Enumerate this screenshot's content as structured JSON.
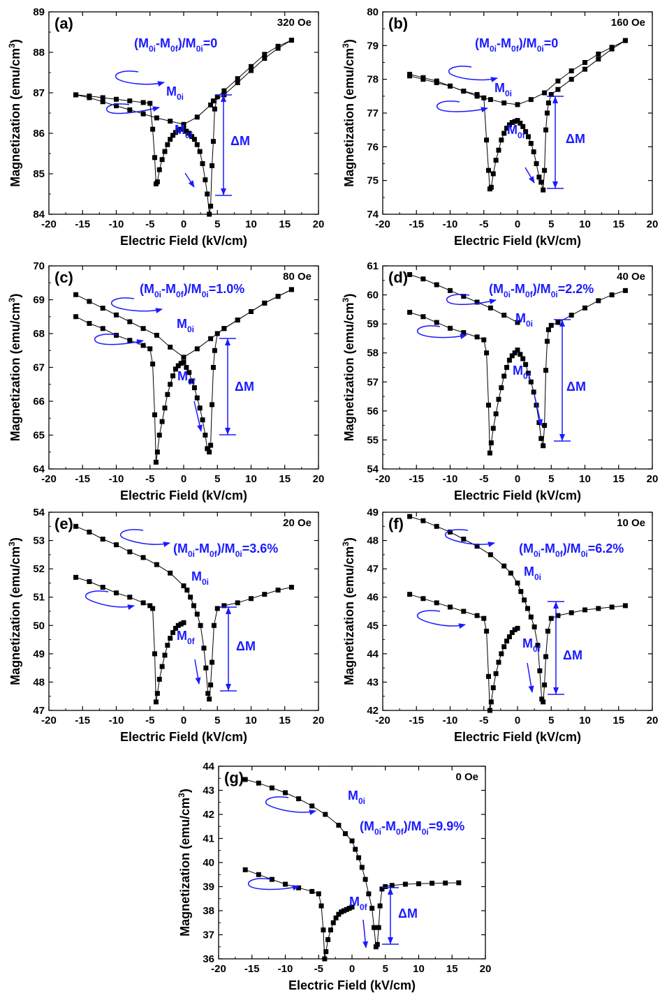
{
  "chart_data": [
    {
      "type": "scatter",
      "panel": "(a)",
      "field": "320 Oe",
      "ratio": "=0",
      "xlabel": "Electric Field (kV/cm)",
      "ylabel": "Magnetization (emu/cm3)",
      "xlim": [
        -20,
        20
      ],
      "ylim": [
        84,
        89
      ],
      "xticks": [
        -20,
        -15,
        -10,
        -5,
        0,
        5,
        10,
        15,
        20
      ],
      "yticks": [
        84,
        85,
        86,
        87,
        88,
        89
      ],
      "series": [
        {
          "x": [
            -16,
            -14,
            -12,
            -10,
            -8,
            -6,
            -5,
            -4.6,
            -4.3,
            -4.1,
            -3.9,
            -3.6,
            -3.2,
            -2.8,
            -2.4,
            -2,
            -1.6,
            -1.2,
            -0.8,
            -0.4,
            0,
            0.4,
            0.8,
            1.2,
            1.6,
            2,
            2.4,
            2.8,
            3.2,
            3.5,
            3.8,
            4,
            4.2,
            4.4,
            4.6,
            5,
            6,
            8,
            10,
            12,
            14,
            16
          ],
          "y": [
            86.95,
            86.92,
            86.88,
            86.84,
            86.8,
            86.76,
            86.74,
            86.1,
            85.4,
            84.75,
            84.8,
            85.1,
            85.35,
            85.55,
            85.72,
            85.85,
            85.95,
            86.02,
            86.08,
            86.1,
            86.12,
            86.05,
            86,
            85.92,
            85.85,
            85.72,
            85.55,
            85.25,
            84.85,
            84.5,
            84,
            84.2,
            85.2,
            85.8,
            86.6,
            86.9,
            87.05,
            87.35,
            87.65,
            87.95,
            88.15,
            88.3
          ]
        },
        {
          "x": [
            -16,
            -14,
            -12,
            -10,
            -8,
            -6,
            -4,
            -2,
            0,
            2,
            4,
            4.4,
            6,
            8,
            10,
            12,
            14,
            16
          ],
          "y": [
            86.95,
            86.88,
            86.78,
            86.68,
            86.58,
            86.48,
            86.38,
            86.3,
            86.22,
            86.4,
            86.7,
            86.8,
            86.95,
            87.25,
            87.55,
            87.85,
            88.1,
            88.3
          ]
        }
      ]
    },
    {
      "type": "scatter",
      "panel": "(b)",
      "field": "160 Oe",
      "ratio": "=0",
      "xlabel": "Electric Field (kV/cm)",
      "ylabel": "Magnetization (emu/cm3)",
      "xlim": [
        -20,
        20
      ],
      "ylim": [
        74,
        80
      ],
      "xticks": [
        -20,
        -15,
        -10,
        -5,
        0,
        5,
        10,
        15,
        20
      ],
      "yticks": [
        74,
        75,
        76,
        77,
        78,
        79,
        80
      ],
      "series": [
        {
          "x": [
            -16,
            -14,
            -12,
            -10,
            -8,
            -6,
            -5,
            -4.6,
            -4.3,
            -4.1,
            -3.9,
            -3.6,
            -3.2,
            -2.8,
            -2.4,
            -2,
            -1.6,
            -1.2,
            -0.8,
            -0.4,
            0,
            0.4,
            0.8,
            1.2,
            1.6,
            2,
            2.4,
            2.8,
            3.2,
            3.5,
            3.8,
            4,
            4.2,
            4.4,
            4.6,
            5,
            6,
            8,
            10,
            12,
            14,
            16
          ],
          "y": [
            78.1,
            78.0,
            77.9,
            77.8,
            77.65,
            77.55,
            77.45,
            76.2,
            75.3,
            74.75,
            74.8,
            75.2,
            75.6,
            75.9,
            76.2,
            76.4,
            76.55,
            76.65,
            76.72,
            76.75,
            76.78,
            76.7,
            76.6,
            76.45,
            76.3,
            76.1,
            75.85,
            75.5,
            75.1,
            74.95,
            74.72,
            75.3,
            76.5,
            77.0,
            77.3,
            77.55,
            77.7,
            78.0,
            78.3,
            78.6,
            78.9,
            79.15
          ]
        },
        {
          "x": [
            -16,
            -14,
            -12,
            -10,
            -8,
            -6,
            -4,
            -2,
            0,
            2,
            4,
            6,
            8,
            10,
            12,
            14,
            16
          ],
          "y": [
            78.15,
            78.05,
            77.95,
            77.8,
            77.65,
            77.5,
            77.4,
            77.3,
            77.25,
            77.4,
            77.6,
            77.95,
            78.25,
            78.5,
            78.75,
            78.95,
            79.15
          ]
        }
      ]
    },
    {
      "type": "scatter",
      "panel": "(c)",
      "field": "80 Oe",
      "ratio": "=1.0%",
      "xlabel": "Electric Field (kV/cm)",
      "ylabel": "Magnetization (emu/cm3)",
      "xlim": [
        -20,
        20
      ],
      "ylim": [
        64,
        70
      ],
      "xticks": [
        -20,
        -15,
        -10,
        -5,
        0,
        5,
        10,
        15,
        20
      ],
      "yticks": [
        64,
        65,
        66,
        67,
        68,
        69,
        70
      ],
      "series": [
        {
          "x": [
            -16,
            -14,
            -12,
            -10,
            -8,
            -6,
            -5,
            -4.6,
            -4.3,
            -4.1,
            -3.9,
            -3.6,
            -3.2,
            -2.8,
            -2.4,
            -2,
            -1.6,
            -1.2,
            -0.8,
            -0.4,
            0,
            0.4,
            0.8,
            1.2,
            1.6,
            2,
            2.4,
            2.8,
            3.2,
            3.5,
            3.8,
            4,
            4.2,
            4.4,
            4.6,
            5,
            6,
            8,
            10,
            12,
            14,
            16
          ],
          "y": [
            68.5,
            68.3,
            68.15,
            67.95,
            67.8,
            67.65,
            67.55,
            67.1,
            65.6,
            64.2,
            64.5,
            65.0,
            65.4,
            65.8,
            66.2,
            66.5,
            66.75,
            66.95,
            67.05,
            67.12,
            67.15,
            67.0,
            66.85,
            66.6,
            66.4,
            66.1,
            65.8,
            65.45,
            65.0,
            64.6,
            64.5,
            64.7,
            65.9,
            67.0,
            67.5,
            68.0,
            68.15,
            68.4,
            68.65,
            68.9,
            69.1,
            69.3
          ]
        },
        {
          "x": [
            -16,
            -14,
            -12,
            -10,
            -8,
            -6,
            -4,
            -2,
            0,
            2,
            4,
            6,
            8,
            10,
            12,
            14,
            16
          ],
          "y": [
            69.15,
            68.95,
            68.75,
            68.55,
            68.35,
            68.15,
            67.95,
            67.6,
            67.3,
            67.55,
            67.85,
            68.15,
            68.4,
            68.65,
            68.9,
            69.1,
            69.3
          ]
        }
      ]
    },
    {
      "type": "scatter",
      "panel": "(d)",
      "field": "40 Oe",
      "ratio": "=2.2%",
      "xlabel": "Electric Field (kV/cm)",
      "ylabel": "Magnetization (emu/cm3)",
      "xlim": [
        -20,
        20
      ],
      "ylim": [
        54,
        61
      ],
      "xticks": [
        -20,
        -15,
        -10,
        -5,
        0,
        5,
        10,
        15,
        20
      ],
      "yticks": [
        54,
        55,
        56,
        57,
        58,
        59,
        60,
        61
      ],
      "series": [
        {
          "x": [
            -16,
            -14,
            -12,
            -10,
            -8,
            -6,
            -5,
            -4.6,
            -4.3,
            -4.1,
            -3.9,
            -3.6,
            -3.2,
            -2.8,
            -2.4,
            -2,
            -1.6,
            -1.2,
            -0.8,
            -0.4,
            0,
            0.4,
            0.8,
            1.2,
            1.6,
            2,
            2.4,
            2.8,
            3.2,
            3.5,
            3.8,
            4,
            4.2,
            4.4,
            4.6,
            5,
            6,
            8,
            10,
            12,
            14,
            16
          ],
          "y": [
            59.4,
            59.25,
            59.05,
            58.85,
            58.7,
            58.55,
            58.45,
            58.0,
            56.2,
            54.55,
            54.9,
            55.4,
            55.9,
            56.4,
            56.8,
            57.2,
            57.5,
            57.75,
            57.9,
            58.0,
            58.1,
            57.95,
            57.8,
            57.6,
            57.3,
            57.0,
            56.65,
            56.2,
            55.6,
            55.05,
            54.8,
            55.5,
            57.4,
            58.4,
            58.8,
            58.95,
            59.05,
            59.3,
            59.55,
            59.8,
            60.0,
            60.15
          ]
        },
        {
          "x": [
            -16,
            -14,
            -12,
            -10,
            -8,
            -6,
            -4,
            -2,
            0
          ],
          "y": [
            60.7,
            60.55,
            60.35,
            60.15,
            59.95,
            59.75,
            59.55,
            59.3,
            59.05
          ]
        }
      ]
    },
    {
      "type": "scatter",
      "panel": "(e)",
      "field": "20 Oe",
      "ratio": "=3.6%",
      "xlabel": "Electric Field (kV/cm)",
      "ylabel": "Magnetization (emu/cm3)",
      "xlim": [
        -20,
        20
      ],
      "ylim": [
        47,
        54
      ],
      "xticks": [
        -20,
        -15,
        -10,
        -5,
        0,
        5,
        10,
        15,
        20
      ],
      "yticks": [
        47,
        48,
        49,
        50,
        51,
        52,
        53,
        54
      ],
      "series": [
        {
          "x": [
            -16,
            -14,
            -12,
            -10,
            -8,
            -6,
            -5,
            -4.6,
            -4.3,
            -4.1,
            -3.9,
            -3.6,
            -3.2,
            -2.8,
            -2.4,
            -2,
            -1.6,
            -1.2,
            -0.8,
            -0.4,
            0
          ],
          "y": [
            51.7,
            51.55,
            51.35,
            51.15,
            51.0,
            50.8,
            50.7,
            50.6,
            49.0,
            47.3,
            47.6,
            48.1,
            48.55,
            48.95,
            49.3,
            49.55,
            49.75,
            49.9,
            50.0,
            50.05,
            50.1
          ]
        },
        {
          "x": [
            -16,
            -14,
            -12,
            -10,
            -8,
            -6,
            -4,
            -2,
            0,
            0.5,
            1,
            1.5,
            2,
            2.5,
            3,
            3.3,
            3.6,
            3.8,
            4,
            4.2,
            4.5,
            5,
            6,
            8,
            10,
            12,
            14,
            16
          ],
          "y": [
            53.5,
            53.3,
            53.05,
            52.85,
            52.6,
            52.4,
            52.15,
            51.85,
            51.4,
            51.25,
            51.0,
            50.7,
            50.4,
            50.0,
            49.2,
            48.5,
            47.6,
            47.4,
            47.9,
            48.7,
            50.0,
            50.6,
            50.7,
            50.8,
            50.95,
            51.1,
            51.25,
            51.35
          ]
        }
      ]
    },
    {
      "type": "scatter",
      "panel": "(f)",
      "field": "10 Oe",
      "ratio": "=6.2%",
      "xlabel": "Electric Field (kV/cm)",
      "ylabel": "Magnetization (emu/cm3)",
      "xlim": [
        -20,
        20
      ],
      "ylim": [
        42,
        49
      ],
      "xticks": [
        -20,
        -15,
        -10,
        -5,
        0,
        5,
        10,
        15,
        20
      ],
      "yticks": [
        42,
        43,
        44,
        45,
        46,
        47,
        48,
        49
      ],
      "series": [
        {
          "x": [
            -16,
            -14,
            -12,
            -10,
            -8,
            -6,
            -5,
            -4.6,
            -4.3,
            -4.1,
            -3.9,
            -3.6,
            -3.2,
            -2.8,
            -2.4,
            -2,
            -1.6,
            -1.2,
            -0.8,
            -0.4,
            0
          ],
          "y": [
            46.1,
            45.95,
            45.8,
            45.65,
            45.5,
            45.35,
            45.25,
            44.8,
            43.2,
            42.0,
            42.3,
            42.8,
            43.3,
            43.7,
            44.0,
            44.25,
            44.45,
            44.6,
            44.75,
            44.85,
            44.9
          ]
        },
        {
          "x": [
            -16,
            -14,
            -12,
            -10,
            -8,
            -6,
            -4,
            -2,
            -1,
            0,
            0.5,
            1,
            1.5,
            2,
            2.5,
            3,
            3.3,
            3.6,
            3.8,
            4,
            4.2,
            4.5,
            5,
            6,
            8,
            10,
            12,
            14,
            16
          ],
          "y": [
            48.85,
            48.7,
            48.5,
            48.3,
            48.05,
            47.8,
            47.5,
            47.1,
            46.85,
            46.5,
            46.2,
            45.9,
            45.6,
            45.3,
            44.95,
            44.3,
            43.4,
            42.4,
            42.3,
            42.9,
            43.9,
            44.8,
            45.25,
            45.35,
            45.45,
            45.55,
            45.6,
            45.65,
            45.7
          ]
        }
      ]
    },
    {
      "type": "scatter",
      "panel": "(g)",
      "field": "0 Oe",
      "ratio": "=9.9%",
      "xlabel": "Electric Field (kV/cm)",
      "ylabel": "Magnetization (emu/cm3)",
      "xlim": [
        -20,
        20
      ],
      "ylim": [
        36,
        44
      ],
      "xticks": [
        -20,
        -15,
        -10,
        -5,
        0,
        5,
        10,
        15,
        20
      ],
      "yticks": [
        36,
        37,
        38,
        39,
        40,
        41,
        42,
        43,
        44
      ],
      "series": [
        {
          "x": [
            -16,
            -14,
            -12,
            -10,
            -8,
            -6,
            -5,
            -4.6,
            -4.3,
            -4.1,
            -3.9,
            -3.6,
            -3.2,
            -2.8,
            -2.4,
            -2,
            -1.6,
            -1.2,
            -0.8,
            -0.4,
            0
          ],
          "y": [
            39.7,
            39.5,
            39.3,
            39.1,
            38.95,
            38.8,
            38.7,
            38.2,
            37.2,
            36.0,
            36.3,
            36.8,
            37.2,
            37.5,
            37.7,
            37.85,
            37.95,
            38.0,
            38.05,
            38.1,
            38.15
          ]
        },
        {
          "x": [
            -16,
            -14,
            -12,
            -10,
            -8,
            -6,
            -4,
            -2,
            -1,
            0,
            0.5,
            1,
            1.5,
            2,
            2.5,
            3,
            3.3,
            3.6,
            3.8,
            4,
            4.2,
            4.5,
            5,
            6,
            8,
            10,
            12,
            14,
            16
          ],
          "y": [
            43.45,
            43.3,
            43.1,
            42.9,
            42.65,
            42.35,
            42.0,
            41.55,
            41.2,
            40.9,
            40.55,
            40.2,
            39.8,
            39.3,
            38.7,
            38.1,
            37.3,
            36.5,
            36.6,
            37.3,
            38.2,
            38.9,
            39.0,
            39.05,
            39.1,
            39.12,
            39.14,
            39.15,
            39.16
          ]
        }
      ]
    }
  ],
  "labels": {
    "m0i_main": "M",
    "m0i_sub": "0i",
    "m0f_main": "M",
    "m0f_sub": "0f",
    "delta_m": "ΔM",
    "ratio_open": "(M",
    "ratio_sub1": "0i",
    "ratio_mid": "-M",
    "ratio_sub2": "0f",
    "ratio_close": ")/M",
    "ratio_sub3": "0i"
  },
  "colors": {
    "data": "#000000",
    "annotation": "#1a1aff"
  }
}
